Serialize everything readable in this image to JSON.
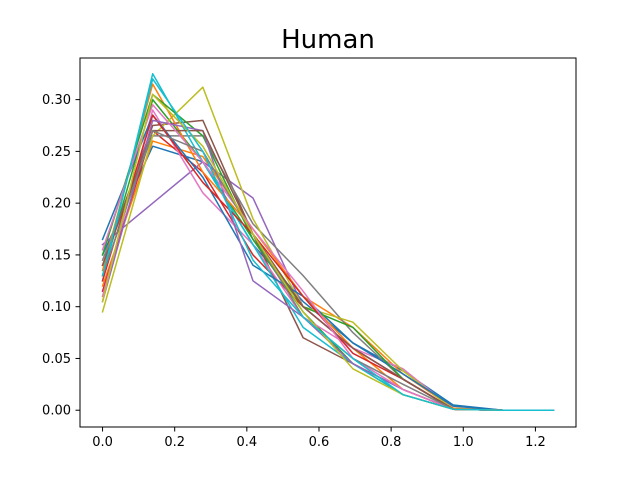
{
  "chart_data": {
    "type": "line",
    "title": "Human",
    "xlabel": "",
    "ylabel": "",
    "xlim": [
      -0.0625,
      1.3125
    ],
    "ylim": [
      -0.0162,
      0.3402
    ],
    "x_ticks": [
      0.0,
      0.2,
      0.4,
      0.6,
      0.8,
      1.0,
      1.2
    ],
    "x_tick_labels": [
      "0.0",
      "0.2",
      "0.4",
      "0.6",
      "0.8",
      "1.0",
      "1.2"
    ],
    "y_ticks": [
      0.0,
      0.05,
      0.1,
      0.15,
      0.2,
      0.25,
      0.3
    ],
    "y_tick_labels": [
      "0.00",
      "0.05",
      "0.10",
      "0.15",
      "0.20",
      "0.25",
      "0.30"
    ],
    "grid": false,
    "legend": false,
    "x": [
      0.0,
      0.139,
      0.278,
      0.417,
      0.556,
      0.694,
      0.833,
      0.972,
      1.111,
      1.25
    ],
    "series": [
      {
        "color": "#1f77b4",
        "values": [
          0.15,
          0.255,
          0.24,
          0.16,
          0.105,
          0.065,
          0.038,
          0.005,
          0.0,
          0.0
        ]
      },
      {
        "color": "#ff7f0e",
        "values": [
          0.12,
          0.26,
          0.245,
          0.175,
          0.11,
          0.08,
          0.035,
          0.002,
          0.0,
          0.0
        ]
      },
      {
        "color": "#2ca02c",
        "values": [
          0.13,
          0.3,
          0.24,
          0.165,
          0.095,
          0.045,
          0.015,
          0.001,
          0.0,
          0.0
        ]
      },
      {
        "color": "#d62728",
        "values": [
          0.115,
          0.27,
          0.23,
          0.15,
          0.1,
          0.06,
          0.03,
          0.001,
          0.0,
          0.0
        ]
      },
      {
        "color": "#9467bd",
        "values": [
          0.16,
          0.2,
          0.24,
          0.205,
          0.1,
          0.06,
          0.03,
          0.001,
          0.0,
          0.0
        ]
      },
      {
        "color": "#8c564b",
        "values": [
          0.14,
          0.275,
          0.28,
          0.17,
          0.07,
          0.045,
          0.02,
          0.001,
          0.0,
          0.0
        ]
      },
      {
        "color": "#e377c2",
        "values": [
          0.11,
          0.29,
          0.21,
          0.16,
          0.09,
          0.06,
          0.04,
          0.001,
          0.0,
          0.0
        ]
      },
      {
        "color": "#7f7f7f",
        "values": [
          0.145,
          0.265,
          0.265,
          0.18,
          0.13,
          0.075,
          0.03,
          0.001,
          0.0,
          0.0
        ]
      },
      {
        "color": "#bcbd22",
        "values": [
          0.095,
          0.265,
          0.312,
          0.185,
          0.1,
          0.085,
          0.038,
          0.001,
          0.0,
          0.0
        ]
      },
      {
        "color": "#17becf",
        "values": [
          0.125,
          0.325,
          0.24,
          0.16,
          0.08,
          0.045,
          0.015,
          0.001,
          0.0,
          0.0
        ]
      },
      {
        "color": "#1f77b4",
        "values": [
          0.165,
          0.285,
          0.225,
          0.14,
          0.11,
          0.065,
          0.035,
          0.004,
          0.0,
          0.0
        ]
      },
      {
        "color": "#ff7f0e",
        "values": [
          0.135,
          0.315,
          0.23,
          0.175,
          0.11,
          0.06,
          0.02,
          0.001,
          0.0,
          0.0
        ]
      },
      {
        "color": "#2ca02c",
        "values": [
          0.15,
          0.305,
          0.265,
          0.165,
          0.1,
          0.08,
          0.03,
          0.001,
          0.0,
          0.0
        ]
      },
      {
        "color": "#d62728",
        "values": [
          0.125,
          0.285,
          0.22,
          0.17,
          0.11,
          0.055,
          0.03,
          0.001,
          0.0,
          0.0
        ]
      },
      {
        "color": "#9467bd",
        "values": [
          0.105,
          0.28,
          0.27,
          0.125,
          0.09,
          0.045,
          0.02,
          0.001,
          0.0,
          0.0
        ]
      },
      {
        "color": "#8c564b",
        "values": [
          0.14,
          0.27,
          0.27,
          0.17,
          0.1,
          0.06,
          0.03,
          0.001,
          0.0,
          0.0
        ]
      },
      {
        "color": "#e377c2",
        "values": [
          0.155,
          0.295,
          0.24,
          0.175,
          0.115,
          0.05,
          0.02,
          0.001,
          0.0,
          0.0
        ]
      },
      {
        "color": "#7f7f7f",
        "values": [
          0.13,
          0.27,
          0.25,
          0.17,
          0.09,
          0.05,
          0.025,
          0.001,
          0.0,
          0.0
        ]
      },
      {
        "color": "#bcbd22",
        "values": [
          0.105,
          0.305,
          0.255,
          0.17,
          0.095,
          0.04,
          0.015,
          0.001,
          0.0,
          0.0
        ]
      },
      {
        "color": "#17becf",
        "values": [
          0.13,
          0.32,
          0.25,
          0.145,
          0.09,
          0.05,
          0.015,
          0.001,
          0.0,
          0.0
        ]
      }
    ]
  }
}
